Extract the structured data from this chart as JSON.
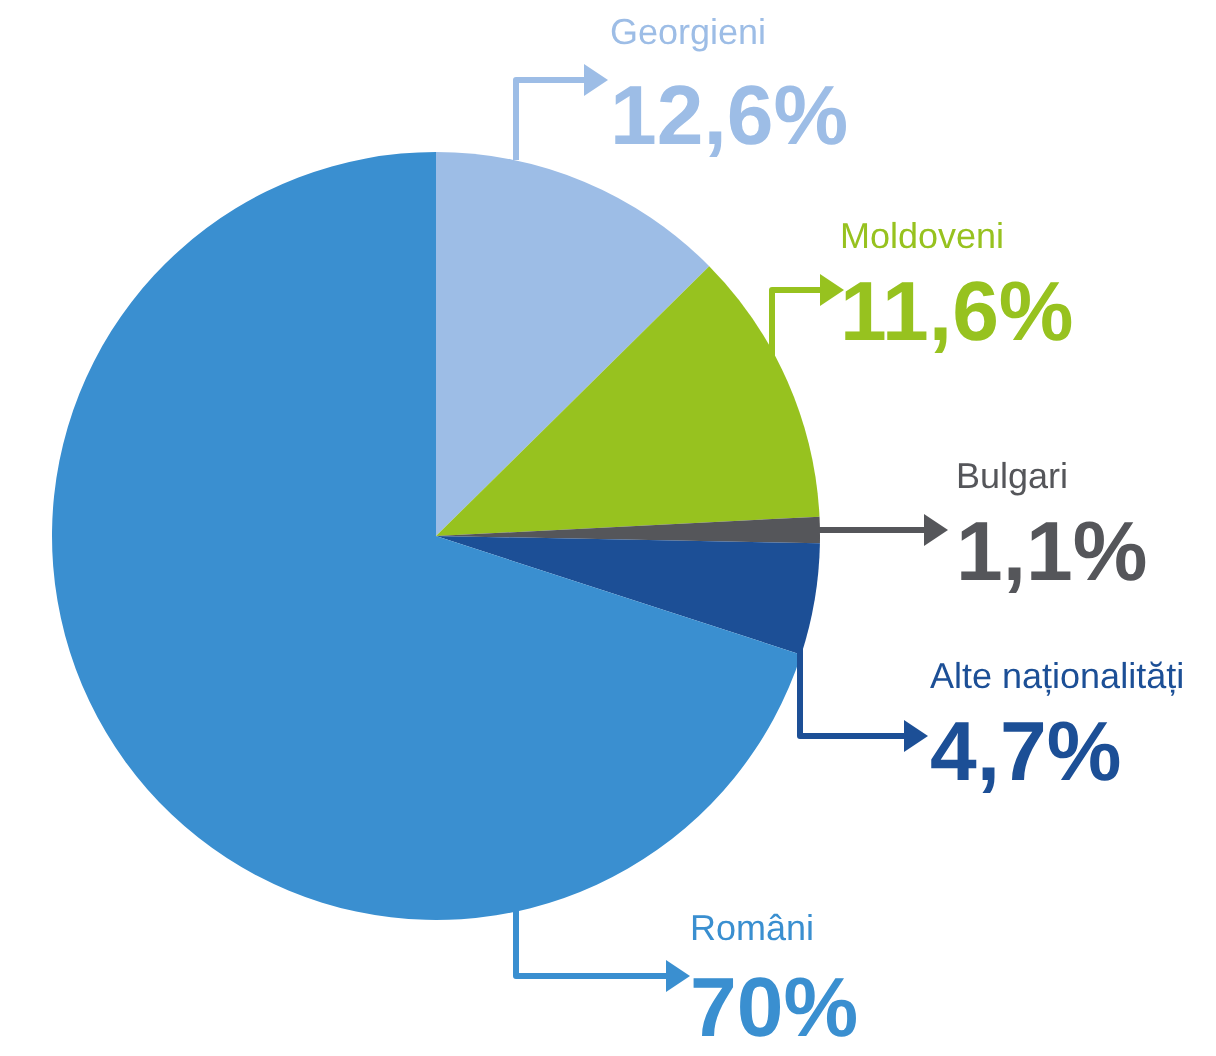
{
  "chart_data": {
    "type": "pie",
    "categories": [
      "Georgieni",
      "Moldoveni",
      "Bulgari",
      "Alte naționalități",
      "Români"
    ],
    "values": [
      12.6,
      11.6,
      1.1,
      4.7,
      70
    ],
    "value_labels": [
      "12,6%",
      "11,6%",
      "1,1%",
      "4,7%",
      "70%"
    ],
    "colors": [
      "#9dbde6",
      "#97c21f",
      "#55565a",
      "#1c4f96",
      "#3a8fd0"
    ]
  }
}
